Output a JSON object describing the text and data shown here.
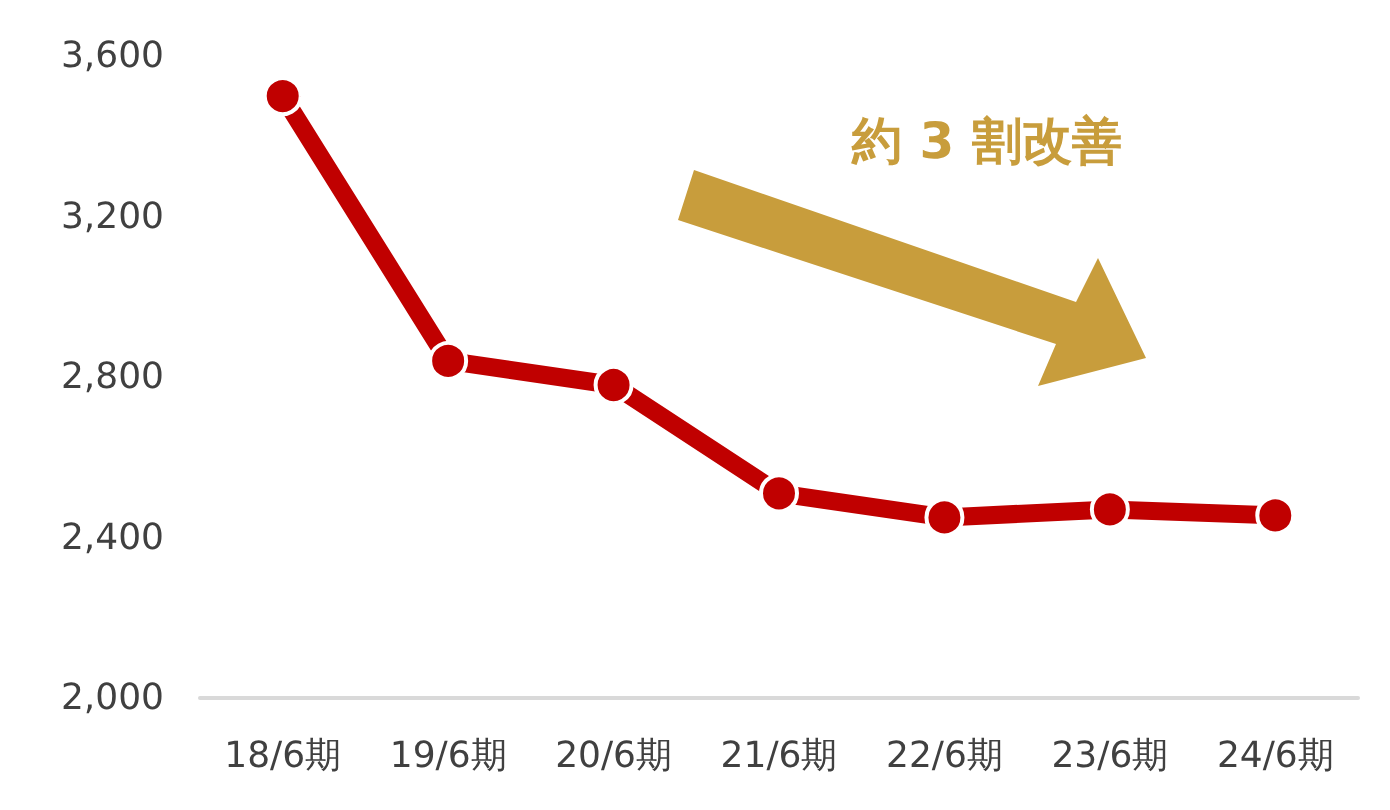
{
  "chart_data": {
    "type": "line",
    "categories": [
      "18/6期",
      "19/6期",
      "20/6期",
      "21/6期",
      "22/6期",
      "23/6期",
      "24/6期"
    ],
    "series": [
      {
        "color": "#c00000",
        "values": [
          3500,
          2840,
          2780,
          2510,
          2450,
          2470,
          2455
        ]
      }
    ],
    "ylim": [
      2000,
      3600
    ],
    "yticks": [
      {
        "value": 2000,
        "label": "2,000"
      },
      {
        "value": 2400,
        "label": "2,400"
      },
      {
        "value": 2800,
        "label": "2,800"
      },
      {
        "value": 3200,
        "label": "3,200"
      },
      {
        "value": 3600,
        "label": "3,600"
      }
    ],
    "grid": false,
    "marker": "circle",
    "line_style": "solid",
    "annotations": [
      "約 3 割改善"
    ]
  }
}
